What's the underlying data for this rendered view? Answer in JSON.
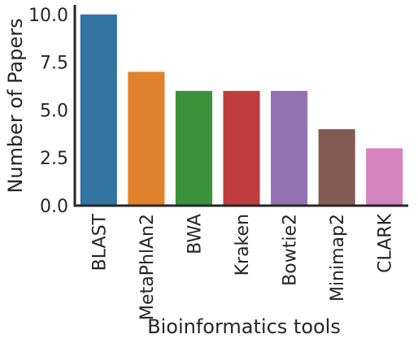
{
  "chart_data": {
    "type": "bar",
    "categories": [
      "BLAST",
      "MetaPhlAn2",
      "BWA",
      "Kraken",
      "Bowtie2",
      "Minimap2",
      "CLARK"
    ],
    "values": [
      10,
      7,
      6,
      6,
      6,
      4,
      3
    ],
    "colors": [
      "#3274a1",
      "#e1812c",
      "#3a923a",
      "#c03d3e",
      "#9372b2",
      "#845b53",
      "#d684bd"
    ],
    "title": "",
    "xlabel": "Bioinformatics tools",
    "ylabel": "Number of Papers",
    "ylim": [
      0,
      10.5
    ],
    "yticks": [
      0,
      2.5,
      5,
      7.5,
      10
    ],
    "ytick_labels": [
      "0.0",
      "2.5",
      "5.0",
      "7.5",
      "10.0"
    ],
    "grid": false,
    "legend": "none"
  }
}
